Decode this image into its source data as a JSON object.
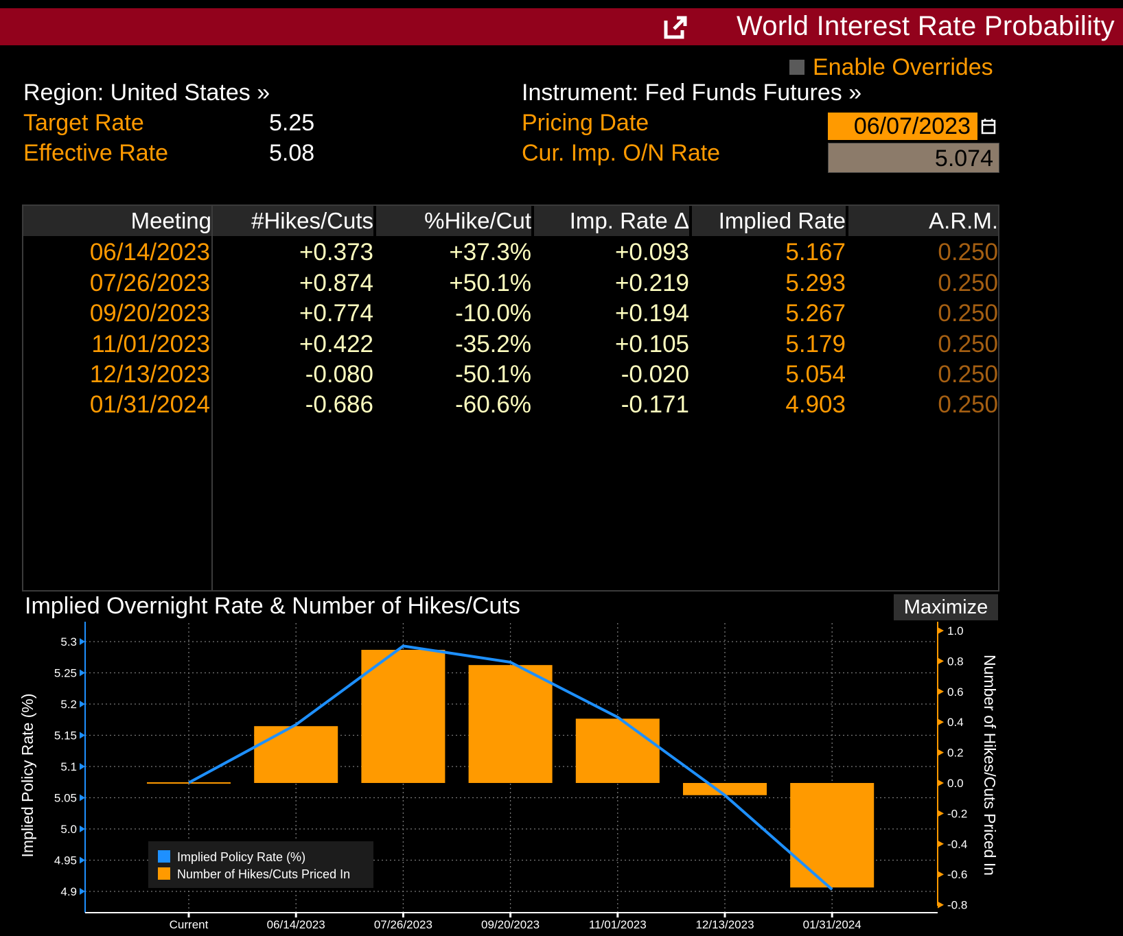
{
  "app": {
    "title": "World Interest Rate Probability",
    "enable_overrides": "Enable Overrides"
  },
  "info": {
    "region": "Region: United States »",
    "target_rate_label": "Target Rate",
    "target_rate_value": "5.25",
    "effective_rate_label": "Effective Rate",
    "effective_rate_value": "5.08",
    "instrument": "Instrument: Fed Funds Futures »",
    "pricing_date_label": "Pricing Date",
    "pricing_date_value": "06/07/2023",
    "cur_imp_label": "Cur. Imp. O/N Rate",
    "cur_imp_value": "5.074"
  },
  "table": {
    "headers": [
      "Meeting",
      "#Hikes/Cuts",
      "%Hike/Cut",
      "Imp. Rate Δ",
      "Implied Rate",
      "A.R.M."
    ],
    "rows": [
      [
        "06/14/2023",
        "+0.373",
        "+37.3%",
        "+0.093",
        "5.167",
        "0.250"
      ],
      [
        "07/26/2023",
        "+0.874",
        "+50.1%",
        "+0.219",
        "5.293",
        "0.250"
      ],
      [
        "09/20/2023",
        "+0.774",
        "-10.0%",
        "+0.194",
        "5.267",
        "0.250"
      ],
      [
        "11/01/2023",
        "+0.422",
        "-35.2%",
        "+0.105",
        "5.179",
        "0.250"
      ],
      [
        "12/13/2023",
        "-0.080",
        "-50.1%",
        "-0.020",
        "5.054",
        "0.250"
      ],
      [
        "01/31/2024",
        "-0.686",
        "-60.6%",
        "-0.171",
        "4.903",
        "0.250"
      ]
    ]
  },
  "chart_panel": {
    "title": "Implied Overnight Rate & Number of Hikes/Cuts",
    "maximize": "Maximize"
  },
  "chart_data": {
    "type": "bar",
    "categories": [
      "Current",
      "06/14/2023",
      "07/26/2023",
      "09/20/2023",
      "11/01/2023",
      "12/13/2023",
      "01/31/2024"
    ],
    "series": [
      {
        "name": "Implied Policy Rate (%)",
        "type": "line",
        "axis": "left",
        "color": "#1e90ff",
        "values": [
          5.074,
          5.167,
          5.293,
          5.267,
          5.179,
          5.054,
          4.903
        ]
      },
      {
        "name": "Number of Hikes/Cuts Priced In",
        "type": "bar",
        "axis": "right",
        "color": "#ff9a00",
        "values": [
          0.0,
          0.373,
          0.874,
          0.774,
          0.422,
          -0.08,
          -0.686
        ]
      }
    ],
    "ylabel_left": "Implied Policy Rate (%)",
    "ylabel_right": "Number of Hikes/Cuts Priced In",
    "left_ticks": [
      "5.3",
      "5.25",
      "5.2",
      "5.15",
      "5.1",
      "5.05",
      "5.0",
      "4.95",
      "4.9"
    ],
    "right_ticks": [
      "1.0",
      "0.8",
      "0.6",
      "0.4",
      "0.2",
      "0.0",
      "-0.2",
      "-0.4",
      "-0.6",
      "-0.8"
    ],
    "ylim_left": [
      4.89,
      5.31
    ],
    "ylim_right": [
      -0.8,
      1.0
    ],
    "grid": true,
    "legend_position": "bottom-left",
    "colors": {
      "line": "#1e90ff",
      "bar": "#ff9a00",
      "axis_left": "#1e90ff",
      "axis_right": "#ff9a00"
    }
  }
}
